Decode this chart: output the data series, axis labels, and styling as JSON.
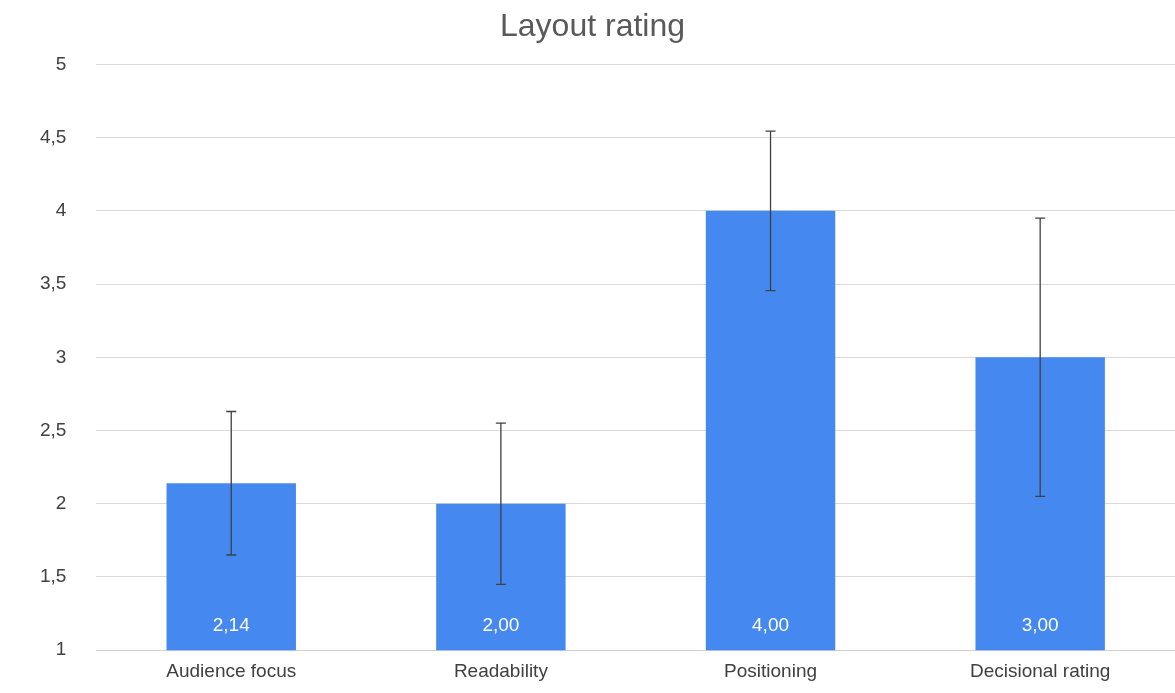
{
  "chart_data": {
    "type": "bar",
    "title": "Layout rating",
    "categories": [
      "Audience focus",
      "Readability",
      "Positioning",
      "Decisional rating"
    ],
    "values": [
      2.14,
      2.0,
      4.0,
      3.0
    ],
    "color": "#4589f0",
    "errors": [
      0.49,
      0.55,
      0.545,
      0.95
    ],
    "value_labels": [
      "2,14",
      "2,00",
      "4,00",
      "3,00"
    ],
    "ylim": [
      1,
      5
    ],
    "yticks": [
      1,
      {
        "value": 1.5,
        "label": "1,5"
      },
      2,
      {
        "value": 2.5,
        "label": "2,5"
      },
      3,
      {
        "value": 3.5,
        "label": "3,5"
      },
      4,
      {
        "value": 4.5,
        "label": "4,5"
      },
      5
    ],
    "grid": "y",
    "legend": false
  }
}
